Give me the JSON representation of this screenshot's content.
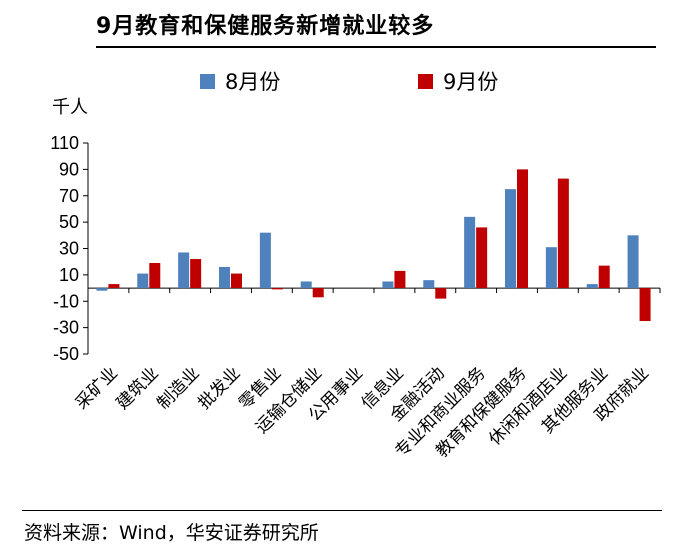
{
  "title": "9月教育和保健服务新增就业较多",
  "source": "资料来源：Wind，华安证券研究所",
  "colors": {
    "aug": "#4F81BD",
    "sep": "#C00000"
  },
  "chart_data": {
    "type": "bar",
    "unit_label": "千人",
    "categories": [
      "采矿业",
      "建筑业",
      "制造业",
      "批发业",
      "零售业",
      "运输仓储业",
      "公用事业",
      "信息业",
      "金融活动",
      "专业和商业服务",
      "教育和保健服务",
      "休闲和酒店业",
      "其他服务业",
      "政府就业"
    ],
    "series": [
      {
        "name": "8月份",
        "values": [
          -2,
          11,
          27,
          16,
          42,
          5,
          0,
          5,
          6,
          54,
          75,
          31,
          3,
          40
        ]
      },
      {
        "name": "9月份",
        "values": [
          3,
          19,
          22,
          11,
          -1,
          -7,
          0,
          13,
          -8,
          46,
          90,
          83,
          17,
          -25
        ]
      }
    ],
    "ylim": [
      -50,
      110
    ],
    "yticks": [
      110,
      90,
      70,
      50,
      30,
      10,
      -10,
      -30,
      -50
    ],
    "legend_position": "top"
  }
}
